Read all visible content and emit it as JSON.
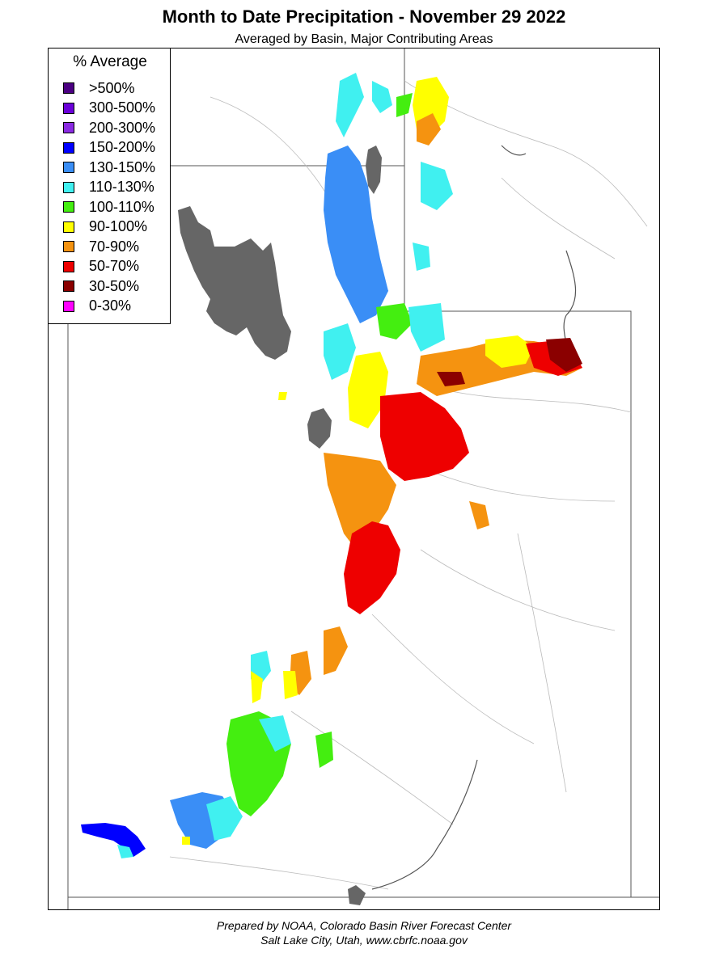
{
  "title": "Month to Date Precipitation - November 29 2022",
  "subtitle": "Averaged by Basin, Major Contributing Areas",
  "legend": {
    "title": "% Average",
    "items": [
      {
        "label": ">500%",
        "color": "#4b0082"
      },
      {
        "label": "300-500%",
        "color": "#6a00d8"
      },
      {
        "label": "200-300%",
        "color": "#8a2be2"
      },
      {
        "label": "150-200%",
        "color": "#0000ff"
      },
      {
        "label": "130-150%",
        "color": "#3a8ef6"
      },
      {
        "label": "110-130%",
        "color": "#40f0f0"
      },
      {
        "label": "100-110%",
        "color": "#44ee10"
      },
      {
        "label": "90-100%",
        "color": "#ffff00"
      },
      {
        "label": "70-90%",
        "color": "#f59310"
      },
      {
        "label": "50-70%",
        "color": "#ee0000"
      },
      {
        "label": "30-50%",
        "color": "#8b0000"
      },
      {
        "label": "0-30%",
        "color": "#ff00ff"
      }
    ]
  },
  "colors": {
    "lake": "#666666",
    "state_border": "#555555",
    "basin_border": "#bbbbbb"
  },
  "footer": {
    "line1": "Prepared by NOAA, Colorado Basin River Forecast Center",
    "line2": "Salt Lake City, Utah, www.cbrfc.noaa.gov"
  }
}
